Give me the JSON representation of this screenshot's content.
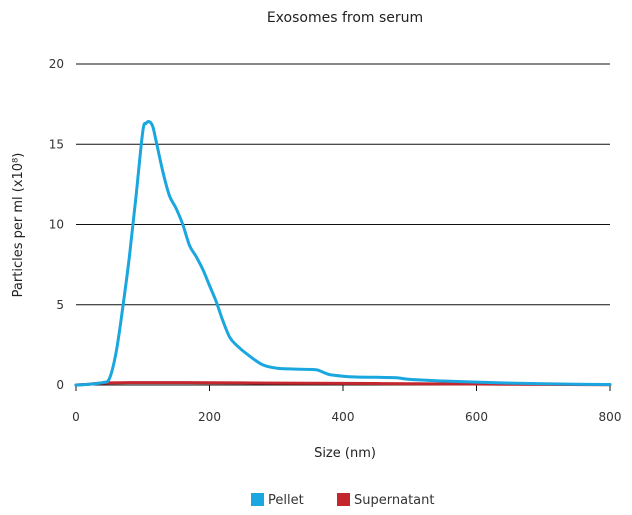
{
  "chart_data": {
    "type": "line",
    "title": "Exosomes from serum",
    "xlabel": "Size (nm)",
    "ylabel": "Particles per ml (x10⁸)",
    "xlim": [
      0,
      800
    ],
    "ylim": [
      0,
      20
    ],
    "xticks": [
      0,
      200,
      400,
      600,
      800
    ],
    "yticks": [
      0,
      5,
      10,
      15,
      20
    ],
    "grid": "horizontal",
    "legend_position": "bottom-center",
    "series": [
      {
        "name": "Pellet",
        "color": "#1aa6df",
        "points": [
          [
            0,
            0
          ],
          [
            20,
            0.05
          ],
          [
            40,
            0.15
          ],
          [
            50,
            0.4
          ],
          [
            60,
            2.0
          ],
          [
            70,
            4.8
          ],
          [
            80,
            8.0
          ],
          [
            90,
            11.8
          ],
          [
            100,
            15.8
          ],
          [
            105,
            16.3
          ],
          [
            110,
            16.4
          ],
          [
            115,
            16.1
          ],
          [
            120,
            15.2
          ],
          [
            130,
            13.3
          ],
          [
            140,
            11.8
          ],
          [
            150,
            11.0
          ],
          [
            160,
            10.0
          ],
          [
            170,
            8.7
          ],
          [
            180,
            8.0
          ],
          [
            190,
            7.2
          ],
          [
            200,
            6.2
          ],
          [
            210,
            5.2
          ],
          [
            220,
            4.0
          ],
          [
            230,
            3.0
          ],
          [
            240,
            2.5
          ],
          [
            260,
            1.8
          ],
          [
            280,
            1.25
          ],
          [
            300,
            1.05
          ],
          [
            320,
            1.0
          ],
          [
            340,
            0.98
          ],
          [
            360,
            0.95
          ],
          [
            370,
            0.8
          ],
          [
            380,
            0.65
          ],
          [
            400,
            0.55
          ],
          [
            420,
            0.5
          ],
          [
            450,
            0.48
          ],
          [
            480,
            0.45
          ],
          [
            500,
            0.35
          ],
          [
            550,
            0.25
          ],
          [
            600,
            0.18
          ],
          [
            650,
            0.12
          ],
          [
            700,
            0.08
          ],
          [
            750,
            0.05
          ],
          [
            800,
            0.03
          ]
        ]
      },
      {
        "name": "Supernatant",
        "color": "#c4262e",
        "points": [
          [
            0,
            0
          ],
          [
            20,
            0.05
          ],
          [
            40,
            0.12
          ],
          [
            100,
            0.15
          ],
          [
            200,
            0.14
          ],
          [
            300,
            0.12
          ],
          [
            400,
            0.1
          ],
          [
            500,
            0.08
          ],
          [
            600,
            0.06
          ],
          [
            700,
            0.04
          ],
          [
            800,
            0.02
          ]
        ]
      }
    ]
  }
}
